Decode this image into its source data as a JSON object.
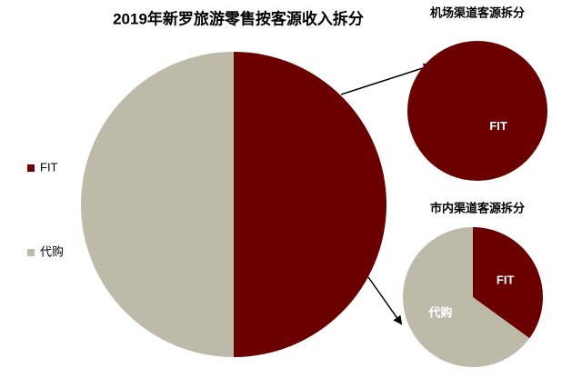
{
  "chart_data": [
    {
      "type": "pie",
      "title": "2019年新罗旅游零售按客源收入拆分",
      "categories": [
        "FIT",
        "代购"
      ],
      "values": [
        50,
        50
      ],
      "colors": [
        "#6b0000",
        "#bdbaa9"
      ],
      "legend": "left"
    },
    {
      "type": "pie",
      "title": "机场渠道客源拆分",
      "categories": [
        "FIT"
      ],
      "values": [
        100
      ],
      "colors": [
        "#6b0000"
      ]
    },
    {
      "type": "pie",
      "title": "市内渠道客源拆分",
      "categories": [
        "FIT",
        "代购"
      ],
      "values": [
        35,
        65
      ],
      "colors": [
        "#6b0000",
        "#bdbaa9"
      ]
    }
  ]
}
